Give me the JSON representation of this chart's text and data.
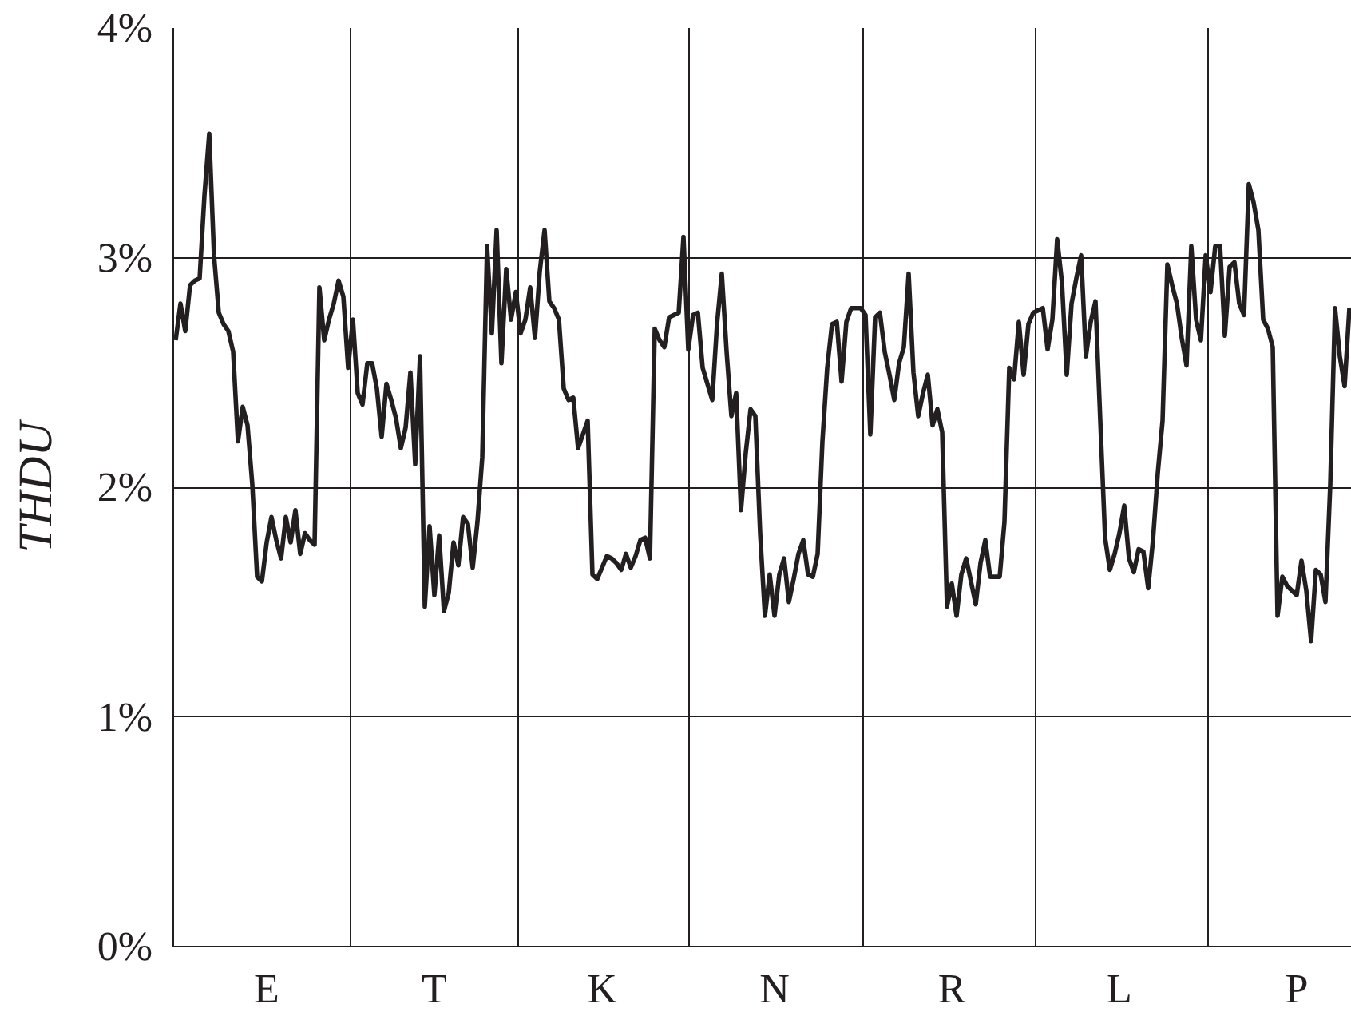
{
  "chart_data": {
    "type": "line",
    "ylabel": "THDU",
    "categories": [
      null,
      null,
      null,
      null,
      null,
      null,
      null,
      null,
      null,
      null,
      null,
      null,
      null,
      null,
      null,
      null,
      null,
      null,
      null,
      "E",
      null,
      null,
      null,
      null,
      null,
      null,
      null,
      null,
      null,
      null,
      null,
      null,
      null,
      null,
      null,
      null,
      null,
      null,
      null,
      null,
      null,
      null,
      null,
      null,
      null,
      null,
      null,
      null,
      null,
      null,
      null,
      null,
      null,
      null,
      "T",
      null,
      null,
      null,
      null,
      null,
      null,
      null,
      null,
      null,
      null,
      null,
      null,
      null,
      null,
      null,
      null,
      null,
      null,
      null,
      null,
      null,
      null,
      null,
      null,
      null,
      null,
      null,
      null,
      null,
      null,
      null,
      null,
      null,
      null,
      "K",
      null,
      null,
      null,
      null,
      null,
      null,
      null,
      null,
      null,
      null,
      null,
      null,
      null,
      null,
      null,
      null,
      null,
      null,
      null,
      null,
      null,
      null,
      null,
      null,
      null,
      null,
      null,
      null,
      null,
      null,
      null,
      null,
      null,
      null,
      null,
      "N",
      null,
      null,
      null,
      null,
      null,
      null,
      null,
      null,
      null,
      null,
      null,
      null,
      null,
      null,
      null,
      null,
      null,
      null,
      null,
      null,
      null,
      null,
      null,
      null,
      null,
      null,
      null,
      null,
      null,
      null,
      null,
      null,
      null,
      null,
      null,
      null,
      "R",
      null,
      null,
      null,
      null,
      null,
      null,
      null,
      null,
      null,
      null,
      null,
      null,
      null,
      null,
      null,
      null,
      null,
      null,
      null,
      null,
      null,
      null,
      null,
      null,
      null,
      null,
      null,
      null,
      null,
      null,
      null,
      null,
      null,
      null,
      "L",
      null,
      null,
      null,
      null,
      null,
      null,
      null,
      null,
      null,
      null,
      null,
      null,
      null,
      null,
      null,
      null,
      null,
      null,
      null,
      null,
      null,
      null,
      null,
      null,
      null,
      null,
      null,
      null,
      null,
      null,
      null,
      null,
      null,
      null,
      null,
      null,
      "P",
      null,
      null,
      null,
      null,
      null,
      null,
      null,
      null,
      null,
      null,
      null
    ],
    "ylim": [
      0,
      4
    ],
    "yticks": [
      {
        "value": 0,
        "label": "0%"
      },
      {
        "value": 1,
        "label": "1%"
      },
      {
        "value": 2,
        "label": "2%"
      },
      {
        "value": 3,
        "label": "3%"
      },
      {
        "value": 4,
        "label": "4%"
      }
    ],
    "grid": true,
    "line_style": "solid",
    "series": [
      {
        "color": "#231f20",
        "values": [
          2.64,
          2.8,
          2.68,
          2.88,
          2.9,
          2.91,
          3.27,
          3.54,
          3.01,
          2.76,
          2.71,
          2.68,
          2.59,
          2.2,
          2.35,
          2.27,
          2.01,
          1.61,
          1.59,
          1.76,
          1.87,
          1.77,
          1.69,
          1.87,
          1.76,
          1.9,
          1.71,
          1.8,
          1.77,
          1.75,
          2.87,
          2.64,
          2.73,
          2.8,
          2.9,
          2.83,
          2.52,
          2.73,
          2.41,
          2.36,
          2.54,
          2.54,
          2.43,
          2.22,
          2.45,
          2.38,
          2.3,
          2.17,
          2.26,
          2.5,
          2.1,
          2.57,
          1.48,
          1.83,
          1.53,
          1.79,
          1.46,
          1.54,
          1.76,
          1.66,
          1.87,
          1.84,
          1.65,
          1.85,
          2.13,
          3.05,
          2.67,
          3.12,
          2.54,
          2.95,
          2.73,
          2.85,
          2.67,
          2.73,
          2.87,
          2.65,
          2.94,
          3.12,
          2.81,
          2.78,
          2.73,
          2.43,
          2.38,
          2.39,
          2.17,
          2.23,
          2.29,
          1.62,
          1.6,
          1.65,
          1.7,
          1.69,
          1.67,
          1.64,
          1.71,
          1.65,
          1.7,
          1.77,
          1.78,
          1.69,
          2.69,
          2.64,
          2.61,
          2.74,
          2.75,
          2.76,
          3.09,
          2.6,
          2.75,
          2.76,
          2.52,
          2.45,
          2.38,
          2.71,
          2.93,
          2.59,
          2.31,
          2.41,
          1.9,
          2.15,
          2.34,
          2.31,
          1.8,
          1.44,
          1.62,
          1.44,
          1.62,
          1.69,
          1.5,
          1.6,
          1.71,
          1.77,
          1.62,
          1.61,
          1.71,
          2.2,
          2.52,
          2.71,
          2.72,
          2.46,
          2.72,
          2.78,
          2.78,
          2.78,
          2.75,
          2.23,
          2.74,
          2.76,
          2.59,
          2.49,
          2.38,
          2.54,
          2.61,
          2.93,
          2.5,
          2.31,
          2.41,
          2.49,
          2.27,
          2.34,
          2.24,
          1.48,
          1.58,
          1.44,
          1.62,
          1.69,
          1.59,
          1.49,
          1.67,
          1.77,
          1.61,
          1.61,
          1.61,
          1.85,
          2.52,
          2.47,
          2.72,
          2.49,
          2.71,
          2.76,
          2.77,
          2.78,
          2.6,
          2.73,
          3.08,
          2.89,
          2.49,
          2.8,
          2.91,
          3.01,
          2.57,
          2.72,
          2.81,
          2.29,
          1.78,
          1.64,
          1.71,
          1.8,
          1.92,
          1.69,
          1.63,
          1.73,
          1.72,
          1.56,
          1.77,
          2.06,
          2.29,
          2.97,
          2.88,
          2.8,
          2.65,
          2.53,
          3.05,
          2.73,
          2.64,
          3.01,
          2.85,
          3.05,
          3.05,
          2.66,
          2.96,
          2.98,
          2.8,
          2.75,
          3.32,
          3.24,
          3.12,
          2.73,
          2.69,
          2.61,
          1.44,
          1.61,
          1.57,
          1.55,
          1.53,
          1.68,
          1.55,
          1.33,
          1.64,
          1.62,
          1.5,
          2.01,
          2.78,
          2.57,
          2.44,
          2.78
        ]
      }
    ]
  }
}
